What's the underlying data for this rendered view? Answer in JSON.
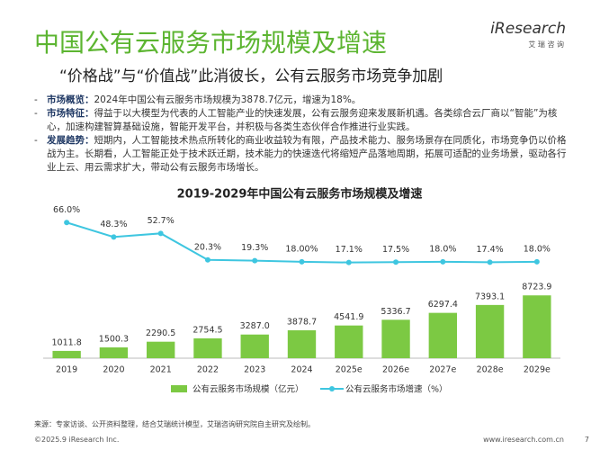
{
  "title": "中国公有云服务市场规模及增速",
  "subtitle": "“价格战”与“价值战”此消彼长，公有云服务市场竞争加剧",
  "logo": "iResearch",
  "logo_sub": "艾 瑞 咨 询",
  "bullets": [
    {
      "label": "市场概览：",
      "text": "2024年中国公有云服务市场规模为3878.7亿元，增速为18%。"
    },
    {
      "label": "市场特征：",
      "text": "得益于以大模型为代表的人工智能产业的快速发展，公有云服务迎来发展新机遇。各类综合云厂商以“智能”为核心，加速构建智算基础设施，智能开发平台，并积极与各类生态伙伴合作推进行业实践。"
    },
    {
      "label": "发展趋势：",
      "text": "短期内，人工智能技术热点所转化的商业收益较为有限，产品技术能力、服务场景存在同质化，市场竞争仍以价格战为主。长期看，人工智能正处于技术跃迁期，技术能力的快速迭代将缩短产品落地周期，拓展可适配的业务场景，驱动各行业上云、用云需求扩大，带动公有云服务市场增长。"
    }
  ],
  "source": "来源：专家访谈、公开资料整理，结合艾瑞统计模型，艾瑞咨询研究院自主研究及绘制。",
  "copyright": "©2025.9 iResearch Inc.",
  "website": "www.iresearch.com.cn",
  "page_number": "7",
  "chart_data": {
    "type": "bar-line",
    "title": "2019-2029年中国公有云服务市场规模及增速",
    "categories": [
      "2019",
      "2020",
      "2021",
      "2022",
      "2023",
      "2024",
      "2025e",
      "2026e",
      "2027e",
      "2028e",
      "2029e"
    ],
    "series": [
      {
        "name": "公有云服务市场规模（亿元）",
        "type": "bar",
        "color": "#7cc943",
        "values": [
          1011.8,
          1500.3,
          2290.5,
          2754.5,
          3287.0,
          3878.7,
          4541.9,
          5336.7,
          6297.4,
          7393.1,
          8723.9
        ],
        "value_labels": [
          "1011.8",
          "1500.3",
          "2290.5",
          "2754.5",
          "3287.0",
          "3878.7",
          "4541.9",
          "5336.7",
          "6297.4",
          "7393.1",
          "8723.9"
        ]
      },
      {
        "name": "公有云服务市场增速（%）",
        "type": "line",
        "axis": "y2",
        "color": "#3ec6e0",
        "values": [
          66.0,
          48.3,
          52.7,
          20.3,
          19.3,
          18.0,
          17.1,
          17.5,
          18.0,
          17.4,
          18.0
        ],
        "value_labels": [
          "66.0%",
          "48.3%",
          "52.7%",
          "20.3%",
          "19.3%",
          "18.00%",
          "17.1%",
          "17.5%",
          "18.0%",
          "17.4%",
          "18.0%"
        ]
      }
    ],
    "ylim": [
      0,
      21000
    ],
    "y2lim": [
      -100,
      85
    ]
  }
}
